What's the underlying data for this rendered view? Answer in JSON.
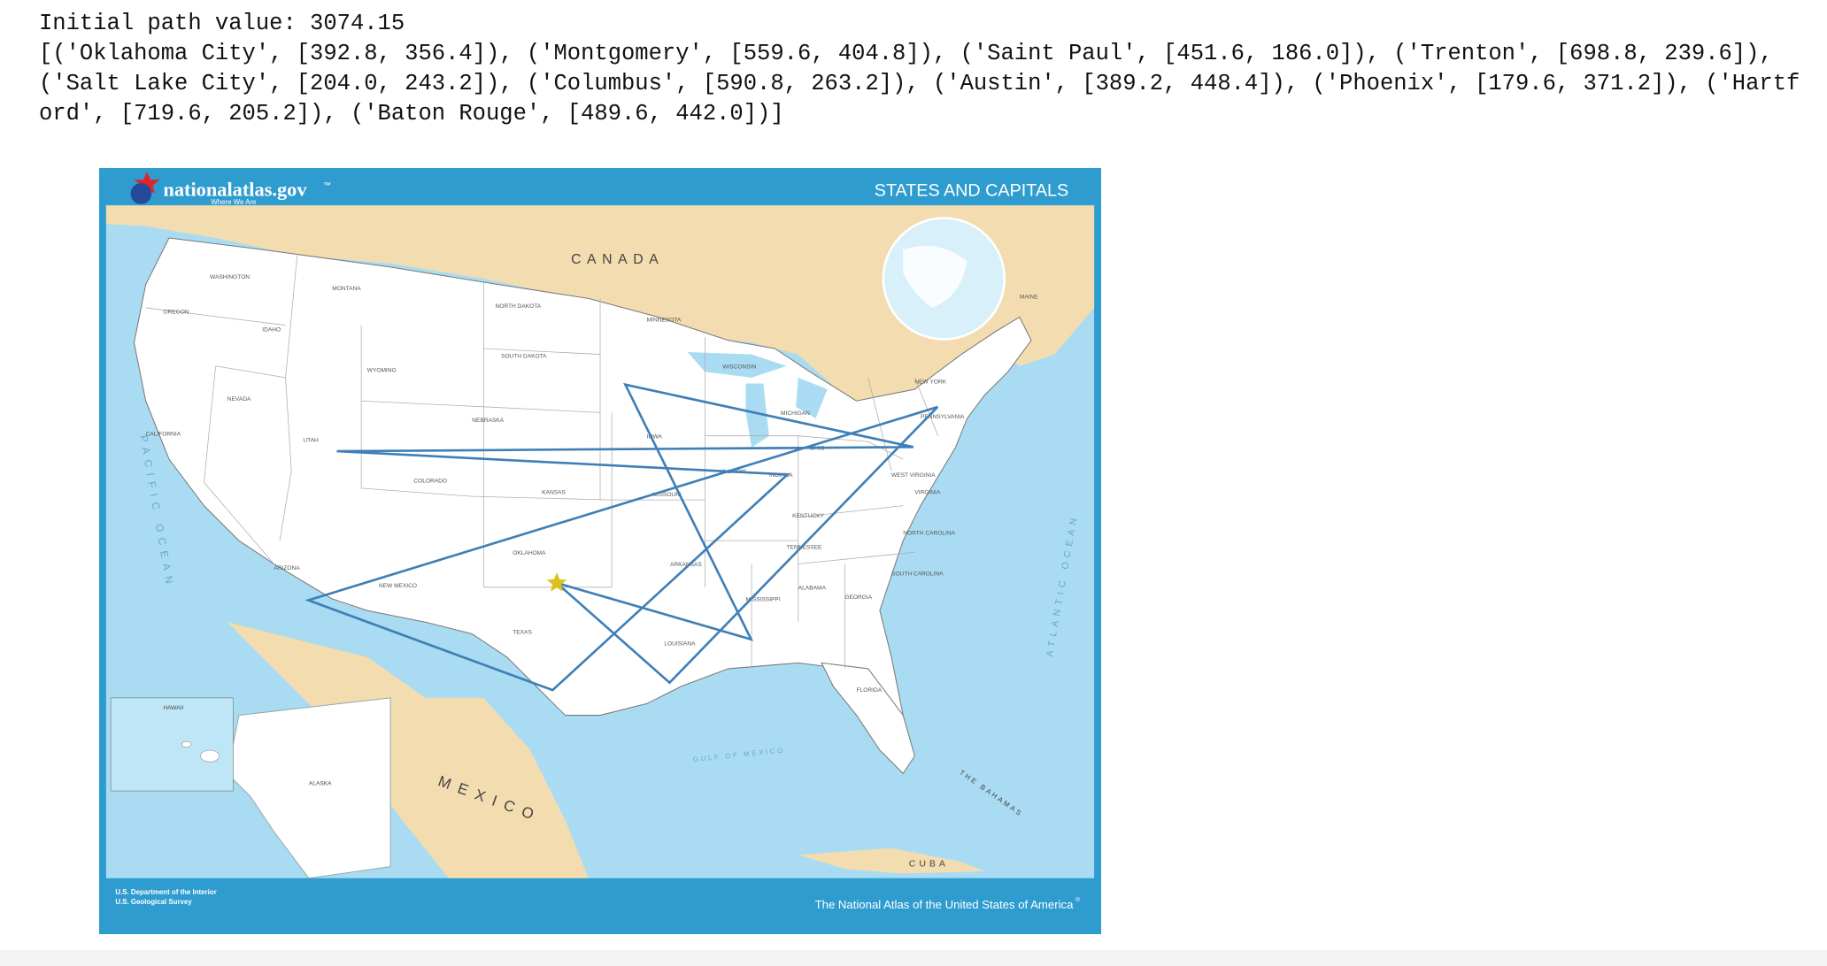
{
  "output": {
    "line1": "Initial path value: 3074.15",
    "path_list_text": "[('Oklahoma City', [392.8, 356.4]), ('Montgomery', [559.6, 404.8]), ('Saint Paul', [451.6, 186.0]), ('Trenton', [698.8, 239.6]), ('Salt Lake City', [204.0, 243.2]), ('Columbus', [590.8, 263.2]), ('Austin', [389.2, 448.4]), ('Phoenix', [179.6, 371.2]), ('Hartford', [719.6, 205.2]), ('Baton Rouge', [489.6, 442.0])]"
  },
  "map": {
    "brand": "nationalatlas.gov",
    "brand_tm": "™",
    "tagline": "Where We Are",
    "title": "STATES AND CAPITALS",
    "footer_left_1": "U.S. Department of the Interior",
    "footer_left_2": "U.S. Geological Survey",
    "footer_right": "The National Atlas of the United States of America",
    "footer_reg": "®",
    "labels": {
      "canada": "CANADA",
      "mexico": "MEXICO",
      "pacific": "PACIFIC OCEAN",
      "atlantic": "ATLANTIC OCEAN",
      "gulf": "GULF OF MEXICO",
      "cuba": "CUBA",
      "bahamas": "THE BAHAMAS",
      "hawaii": "HAWAII",
      "alaska": "ALASKA",
      "canada_small": "CANADA"
    },
    "states": [
      "WASHINGTON",
      "OREGON",
      "CALIFORNIA",
      "NEVADA",
      "IDAHO",
      "MONTANA",
      "WYOMING",
      "UTAH",
      "COLORADO",
      "ARIZONA",
      "NEW MEXICO",
      "NORTH DAKOTA",
      "SOUTH DAKOTA",
      "NEBRASKA",
      "KANSAS",
      "OKLAHOMA",
      "TEXAS",
      "MINNESOTA",
      "IOWA",
      "MISSOURI",
      "ARKANSAS",
      "LOUISIANA",
      "WISCONSIN",
      "ILLINOIS",
      "MICHIGAN",
      "INDIANA",
      "OHIO",
      "KENTUCKY",
      "TENNESSEE",
      "MISSISSIPPI",
      "ALABAMA",
      "GEORGIA",
      "FLORIDA",
      "SOUTH CAROLINA",
      "NORTH CAROLINA",
      "VIRGINIA",
      "WEST VIRGINIA",
      "PENNSYLVANIA",
      "NEW YORK",
      "MAINE"
    ],
    "path_coords": [
      [
        392.8,
        356.4
      ],
      [
        559.6,
        404.8
      ],
      [
        451.6,
        186.0
      ],
      [
        698.8,
        239.6
      ],
      [
        204.0,
        243.2
      ],
      [
        590.8,
        263.2
      ],
      [
        389.2,
        448.4
      ],
      [
        179.6,
        371.2
      ],
      [
        719.6,
        205.2
      ],
      [
        489.6,
        442.0
      ]
    ],
    "path_color": "#3f7fb6",
    "land_color": "#ffffff",
    "water_color": "#a9dcf2",
    "foreign_land_color": "#f3dcb0",
    "frame_color": "#2e9ccf",
    "star_color": "#d9c21a"
  }
}
